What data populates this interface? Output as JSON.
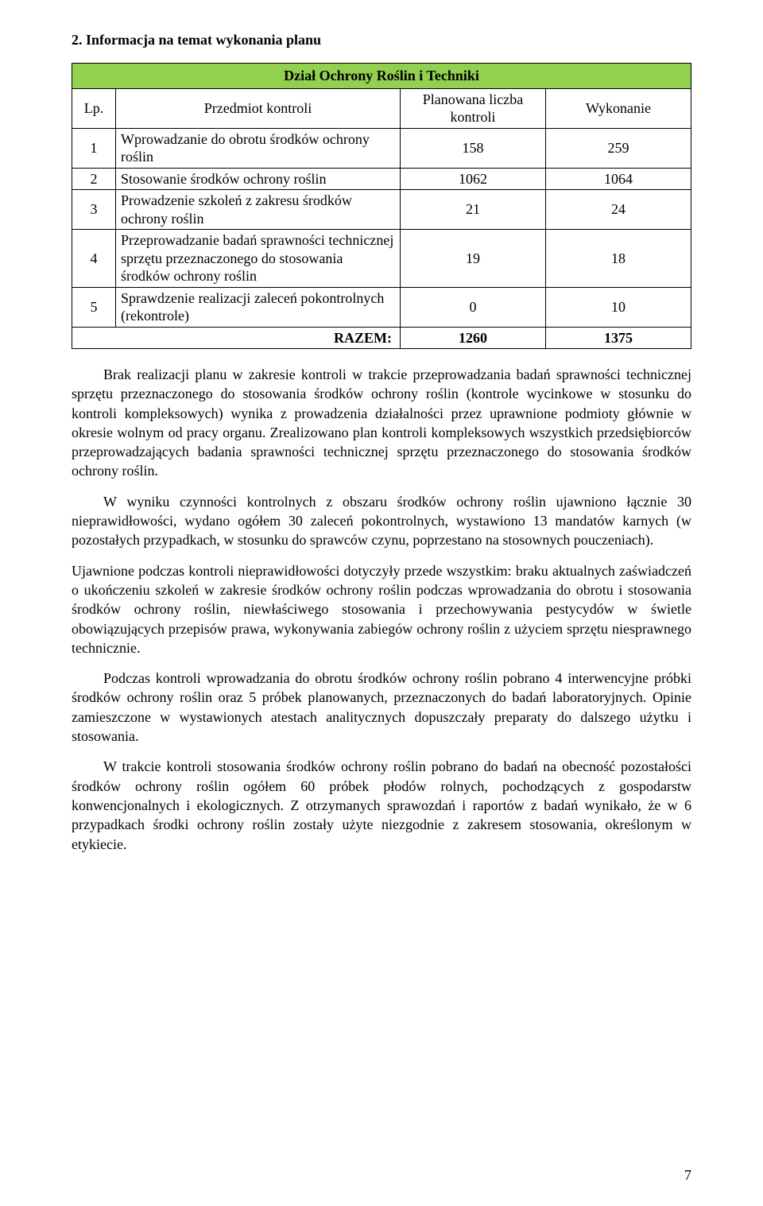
{
  "heading": "2. Informacja na temat wykonania planu",
  "table": {
    "title": "Dział Ochrony Roślin i Techniki",
    "cols": {
      "lp": "Lp.",
      "desc": "Przedmiot kontroli",
      "plan": "Planowana liczba kontroli",
      "exec": "Wykonanie"
    },
    "rows": [
      {
        "lp": "1",
        "desc": "Wprowadzanie do obrotu środków ochrony roślin",
        "plan": "158",
        "exec": "259"
      },
      {
        "lp": "2",
        "desc": "Stosowanie środków ochrony roślin",
        "plan": "1062",
        "exec": "1064"
      },
      {
        "lp": "3",
        "desc": "Prowadzenie szkoleń z zakresu środków ochrony roślin",
        "plan": "21",
        "exec": "24"
      },
      {
        "lp": "4",
        "desc": "Przeprowadzanie badań sprawności technicznej sprzętu przeznaczonego do stosowania środków ochrony roślin",
        "plan": "19",
        "exec": "18"
      },
      {
        "lp": "5",
        "desc": "Sprawdzenie realizacji zaleceń pokontrolnych (rekontrole)",
        "plan": "0",
        "exec": "10"
      }
    ],
    "sum": {
      "label": "RAZEM:",
      "plan": "1260",
      "exec": "1375"
    }
  },
  "para1": "Brak realizacji planu w zakresie kontroli w trakcie przeprowadzania badań sprawności technicznej sprzętu przeznaczonego do stosowania środków ochrony roślin (kontrole wycinkowe w stosunku do kontroli kompleksowych) wynika z prowadzenia działalności przez uprawnione podmioty głównie w okresie wolnym od pracy organu. Zrealizowano plan kontroli kompleksowych wszystkich przedsiębiorców przeprowadzających badania sprawności technicznej sprzętu przeznaczonego do stosowania środków ochrony roślin.",
  "para2": "W wyniku czynności kontrolnych z obszaru środków ochrony roślin ujawniono łącznie 30 nieprawidłowości, wydano ogółem 30 zaleceń pokontrolnych, wystawiono 13 mandatów karnych (w pozostałych przypadkach, w stosunku do sprawców czynu, poprzestano na stosownych pouczeniach).",
  "para3": "Ujawnione podczas kontroli nieprawidłowości dotyczyły przede wszystkim: braku aktualnych zaświadczeń o ukończeniu szkoleń w zakresie środków ochrony roślin podczas wprowadzania do obrotu i stosowania środków ochrony roślin, niewłaściwego stosowania i przechowywania pestycydów w świetle obowiązujących przepisów prawa, wykonywania zabiegów ochrony roślin z użyciem sprzętu niesprawnego technicznie.",
  "para4": "Podczas kontroli wprowadzania do obrotu środków ochrony roślin pobrano 4 interwencyjne próbki środków ochrony roślin oraz 5 próbek planowanych, przeznaczonych do badań laboratoryjnych. Opinie zamieszczone w wystawionych atestach analitycznych dopuszczały preparaty do dalszego użytku i stosowania.",
  "para5": "W trakcie kontroli stosowania środków ochrony roślin pobrano do badań na obecność pozostałości środków ochrony roślin ogółem 60 próbek płodów rolnych, pochodzących z gospodarstw konwencjonalnych i ekologicznych. Z otrzymanych sprawozdań i raportów z badań wynikało, że w 6 przypadkach środki ochrony roślin zostały użyte niezgodnie z zakresem stosowania, określonym w etykiecie.",
  "pageNumber": "7"
}
